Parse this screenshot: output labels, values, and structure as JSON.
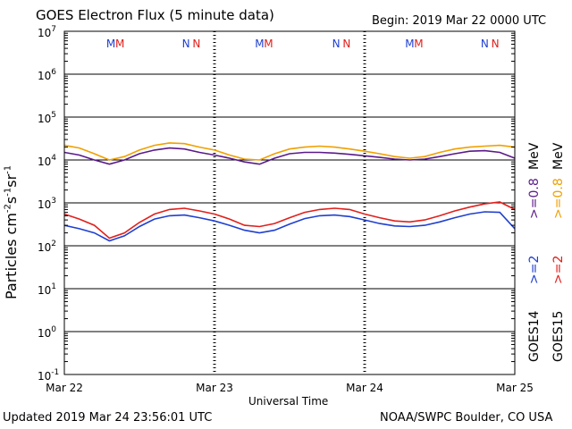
{
  "header": {
    "title": "GOES Electron Flux (5 minute data)",
    "begin": "Begin: 2019 Mar 22 0000 UTC"
  },
  "footer": {
    "updated": "Updated 2019 Mar 24 23:56:01 UTC",
    "credit": "NOAA/SWPC Boulder, CO USA"
  },
  "colors": {
    "goes14_gt2": "#1f3fd0",
    "goes15_gt2": "#e0201c",
    "goes14_gt08": "#5a1a8a",
    "goes15_gt08": "#f0a000",
    "marker_m": "#1f3fd0",
    "marker_n": "#e0201c"
  },
  "chart_data": {
    "type": "line",
    "title": "GOES Electron Flux (5 minute data)",
    "xlabel": "Universal Time",
    "ylabel": "Particles cm-2s-1sr-1",
    "y_scale": "log",
    "ylim": [
      0.1,
      10000000
    ],
    "xlim": [
      0,
      3
    ],
    "x_tick_labels": [
      "Mar 22",
      "Mar 23",
      "Mar 24",
      "Mar 25"
    ],
    "y_ticks": [
      {
        "base": "10",
        "exp": "7"
      },
      {
        "base": "10",
        "exp": "6"
      },
      {
        "base": "10",
        "exp": "5"
      },
      {
        "base": "10",
        "exp": "4"
      },
      {
        "base": "10",
        "exp": "3"
      },
      {
        "base": "10",
        "exp": "2"
      },
      {
        "base": "10",
        "exp": "1"
      },
      {
        "base": "10",
        "exp": "0"
      },
      {
        "base": "10",
        "exp": "-1"
      }
    ],
    "threshold": {
      "value": 1000,
      "style": "dashed"
    },
    "grid": "horizontal at each decade",
    "markers": [
      {
        "label": "M",
        "series": "GOES14",
        "x": 0.31
      },
      {
        "label": "M",
        "series": "GOES15",
        "x": 0.37
      },
      {
        "label": "N",
        "series": "GOES14",
        "x": 0.81
      },
      {
        "label": "N",
        "series": "GOES15",
        "x": 0.88
      },
      {
        "label": "M",
        "series": "GOES14",
        "x": 1.3
      },
      {
        "label": "M",
        "series": "GOES15",
        "x": 1.36
      },
      {
        "label": "N",
        "series": "GOES14",
        "x": 1.81
      },
      {
        "label": "N",
        "series": "GOES15",
        "x": 1.88
      },
      {
        "label": "M",
        "series": "GOES14",
        "x": 2.3
      },
      {
        "label": "M",
        "series": "GOES15",
        "x": 2.36
      },
      {
        "label": "N",
        "series": "GOES14",
        "x": 2.8
      },
      {
        "label": "N",
        "series": "GOES15",
        "x": 2.87
      }
    ],
    "x": [
      0,
      0.1,
      0.2,
      0.3,
      0.4,
      0.5,
      0.6,
      0.7,
      0.8,
      0.9,
      1.0,
      1.1,
      1.2,
      1.3,
      1.4,
      1.5,
      1.6,
      1.7,
      1.8,
      1.9,
      2.0,
      2.1,
      2.2,
      2.3,
      2.4,
      2.5,
      2.6,
      2.7,
      2.8,
      2.9,
      3.0
    ],
    "series": [
      {
        "name": ">=0.8 MeV",
        "group": "GOES15",
        "color_key": "goes15_gt08",
        "values": [
          22000,
          19000,
          14000,
          10000,
          12000,
          17000,
          22000,
          25000,
          24000,
          20000,
          17000,
          13000,
          10500,
          10000,
          14000,
          18000,
          20000,
          21000,
          20000,
          18000,
          16000,
          14000,
          12000,
          11000,
          12000,
          15000,
          18000,
          20000,
          21000,
          22000,
          20000
        ]
      },
      {
        "name": ">=0.8 MeV",
        "group": "GOES14",
        "color_key": "goes14_gt08",
        "values": [
          15000,
          13000,
          10000,
          8000,
          10000,
          14000,
          17000,
          19000,
          18000,
          15000,
          13000,
          11000,
          9000,
          8000,
          11000,
          14000,
          15000,
          15000,
          14500,
          13500,
          12500,
          11500,
          10500,
          10000,
          10500,
          12000,
          14000,
          16000,
          16500,
          15000,
          11000
        ]
      },
      {
        "name": ">=2 MeV",
        "group": "GOES15",
        "color_key": "goes15_gt2",
        "values": [
          550,
          420,
          300,
          150,
          200,
          350,
          550,
          700,
          750,
          650,
          550,
          420,
          300,
          280,
          330,
          450,
          600,
          700,
          750,
          700,
          550,
          450,
          380,
          360,
          400,
          500,
          650,
          800,
          950,
          1050,
          700
        ]
      },
      {
        "name": ">=2 MeV",
        "group": "GOES14",
        "color_key": "goes14_gt2",
        "values": [
          300,
          250,
          200,
          130,
          170,
          280,
          420,
          500,
          520,
          450,
          380,
          300,
          230,
          200,
          230,
          320,
          430,
          500,
          520,
          480,
          400,
          330,
          290,
          280,
          300,
          360,
          450,
          550,
          620,
          600,
          250
        ]
      }
    ]
  },
  "side_labels": {
    "goes14": "GOES14",
    "goes15": "GOES15",
    "goes14_gt2": ">=2",
    "goes15_gt2": ">=2",
    "goes14_gt08": ">=0.8",
    "goes15_gt08": ">=0.8",
    "mev1": "MeV",
    "mev2": "MeV"
  }
}
